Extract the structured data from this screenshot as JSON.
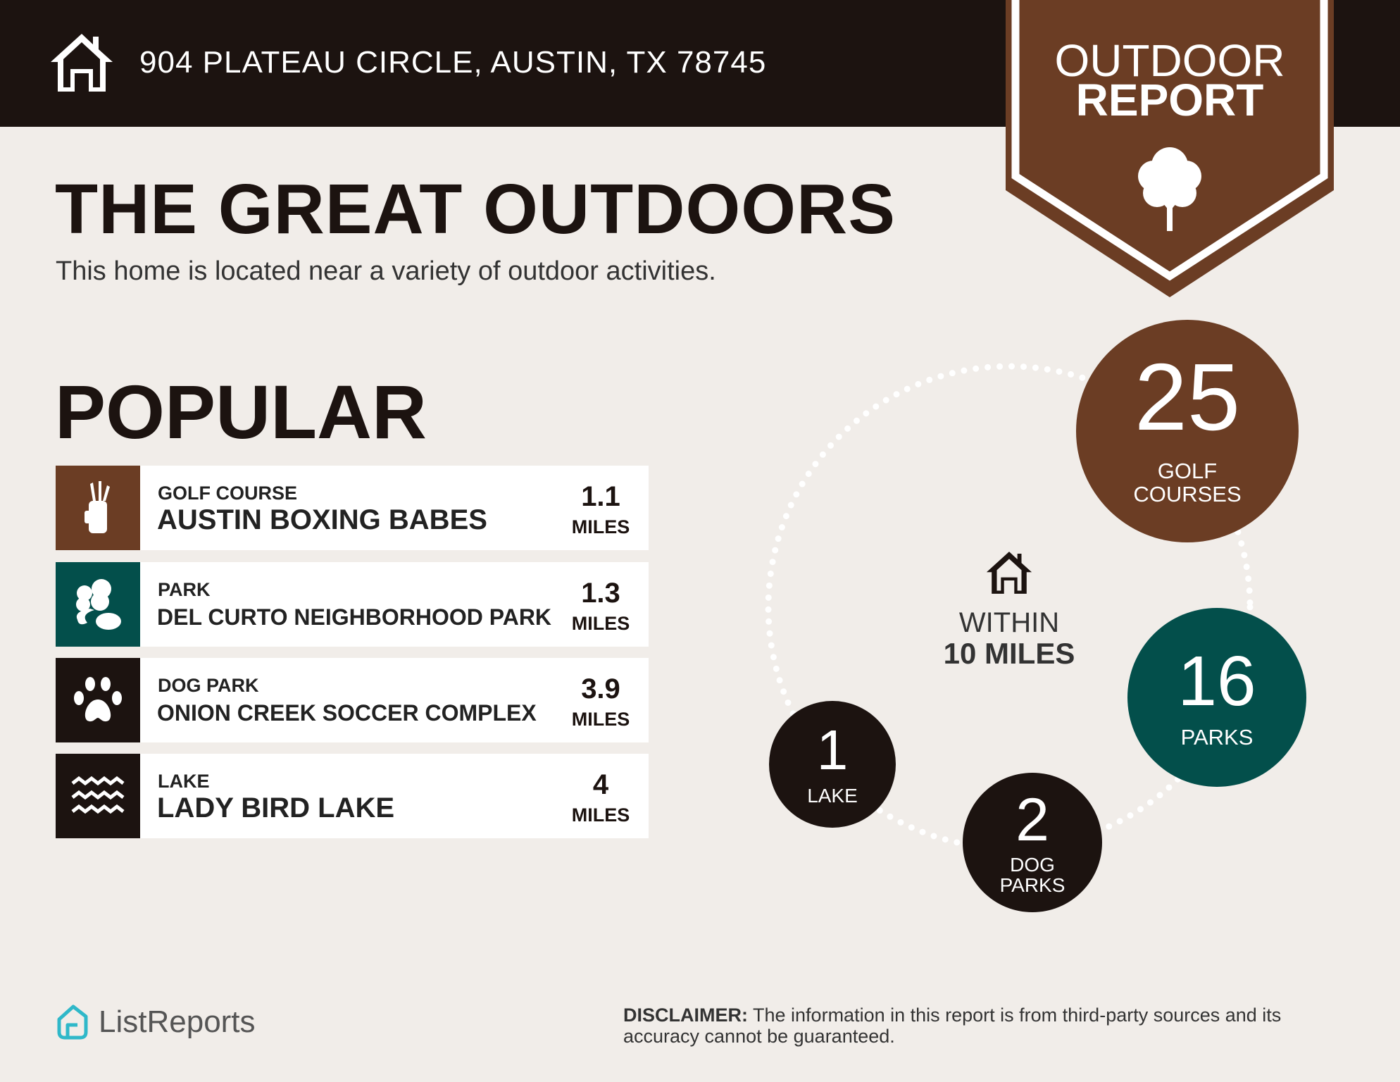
{
  "header": {
    "address": "904 PLATEAU CIRCLE, AUSTIN, TX 78745",
    "badge_line1": "OUTDOOR",
    "badge_line2": "REPORT"
  },
  "main": {
    "title": "THE GREAT OUTDOORS",
    "subtitle": "This home is located near a variety of outdoor activities.",
    "section": "POPULAR"
  },
  "popular": [
    {
      "category": "GOLF COURSE",
      "name": "AUSTIN BOXING BABES",
      "distance": "1.1",
      "unit": "MILES",
      "icon": "golf-bag-icon",
      "color": "#6b3d24"
    },
    {
      "category": "PARK",
      "name": "DEL CURTO NEIGHBORHOOD PARK",
      "distance": "1.3",
      "unit": "MILES",
      "icon": "park-trees-icon",
      "color": "#034f4b"
    },
    {
      "category": "DOG PARK",
      "name": "ONION CREEK SOCCER COMPLEX",
      "distance": "3.9",
      "unit": "MILES",
      "icon": "paw-icon",
      "color": "#1c1310"
    },
    {
      "category": "LAKE",
      "name": "LADY BIRD LAKE",
      "distance": "4",
      "unit": "MILES",
      "icon": "waves-icon",
      "color": "#1c1310"
    }
  ],
  "summary": {
    "within_line1": "WITHIN",
    "within_line2": "10 MILES",
    "golf": {
      "count": "25",
      "label1": "GOLF",
      "label2": "COURSES",
      "color": "#6b3d24"
    },
    "parks": {
      "count": "16",
      "label1": "PARKS",
      "color": "#034f4b"
    },
    "dog_parks": {
      "count": "2",
      "label1": "DOG",
      "label2": "PARKS",
      "color": "#1c1310"
    },
    "lakes": {
      "count": "1",
      "label1": "LAKE",
      "color": "#1c1310"
    }
  },
  "footer": {
    "logo": "ListReports",
    "disclaimer_label": "DISCLAIMER:",
    "disclaimer_text": " The information in this report is from third-party sources and its accuracy cannot be guaranteed."
  }
}
